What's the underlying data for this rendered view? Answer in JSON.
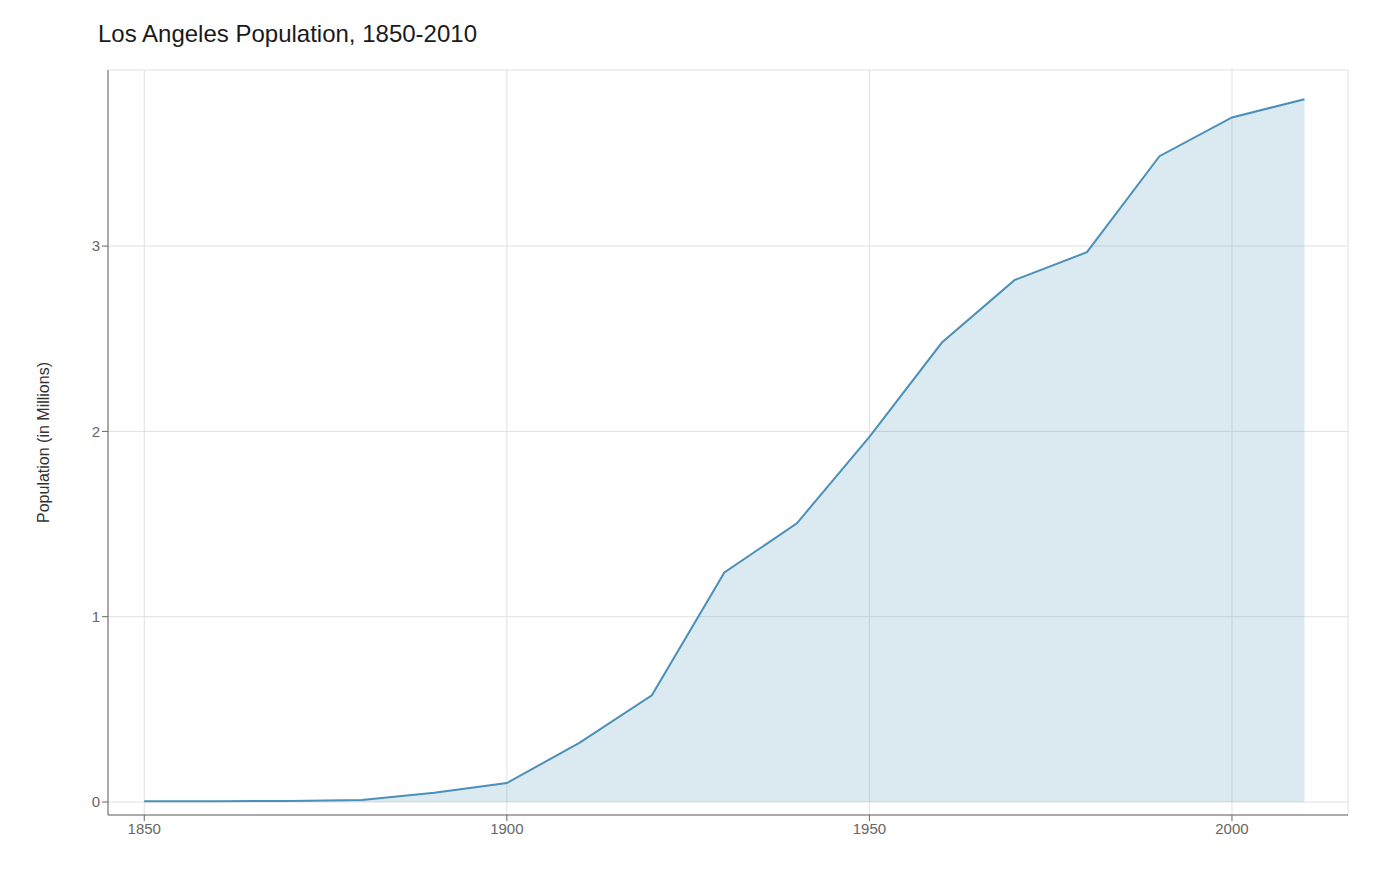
{
  "chart_data": {
    "type": "area",
    "title": "Los Angeles Population, 1850-2010",
    "ylabel": "Population (in Millions)",
    "x": [
      1850,
      1860,
      1870,
      1880,
      1890,
      1900,
      1910,
      1920,
      1930,
      1940,
      1950,
      1960,
      1970,
      1980,
      1990,
      2000,
      2010
    ],
    "values": [
      0.0036,
      0.0044,
      0.0057,
      0.0111,
      0.0501,
      0.1025,
      0.3191,
      0.5763,
      1.2385,
      1.5041,
      1.9706,
      2.4793,
      2.8162,
      2.9669,
      3.4851,
      3.6941,
      3.7924
    ],
    "color": "#4a90b8",
    "xlim": [
      1845,
      2016
    ],
    "ylim": [
      -0.07,
      3.95
    ],
    "xticks": [
      1850,
      1900,
      1950,
      2000
    ],
    "yticks": [
      0,
      1,
      2,
      3
    ],
    "grid": true
  }
}
